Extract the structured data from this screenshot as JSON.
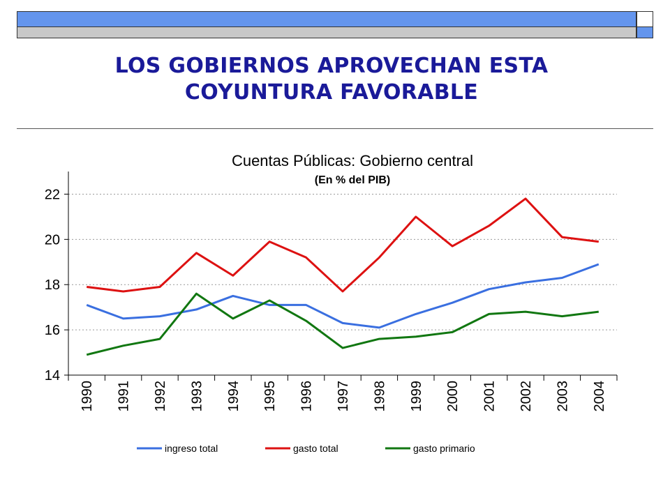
{
  "slide": {
    "title_line1": "LOS GOBIERNOS APROVECHAN ESTA",
    "title_line2": "COYUNTURA FAVORABLE",
    "title_color": "#1a1a99",
    "header_bar_color": "#6495ed"
  },
  "chart_data": {
    "type": "line",
    "title": "Cuentas Públicas: Gobierno central",
    "subtitle": "(En % del PIB)",
    "xlabel": "",
    "ylabel": "",
    "categories": [
      "1990",
      "1991",
      "1992",
      "1993",
      "1994",
      "1995",
      "1996",
      "1997",
      "1998",
      "1999",
      "2000",
      "2001",
      "2002",
      "2003",
      "2004"
    ],
    "ylim": [
      14,
      23
    ],
    "yticks": [
      14,
      16,
      18,
      20,
      22
    ],
    "grid": "horizontal dashed",
    "legend_position": "bottom",
    "series": [
      {
        "name": "ingreso total",
        "color": "#3a6fe0",
        "values": [
          17.1,
          16.5,
          16.6,
          16.9,
          17.5,
          17.1,
          17.1,
          16.3,
          16.1,
          16.7,
          17.2,
          17.8,
          18.1,
          18.3,
          18.9
        ]
      },
      {
        "name": "gasto total",
        "color": "#dd1111",
        "values": [
          17.9,
          17.7,
          17.9,
          19.4,
          18.4,
          19.9,
          19.2,
          17.7,
          19.2,
          21.0,
          19.7,
          20.6,
          21.8,
          20.1,
          19.9
        ]
      },
      {
        "name": "gasto primario",
        "color": "#117711",
        "values": [
          14.9,
          15.3,
          15.6,
          17.6,
          16.5,
          17.3,
          16.4,
          15.2,
          15.6,
          15.7,
          15.9,
          16.7,
          16.8,
          16.6,
          16.8
        ]
      }
    ]
  }
}
